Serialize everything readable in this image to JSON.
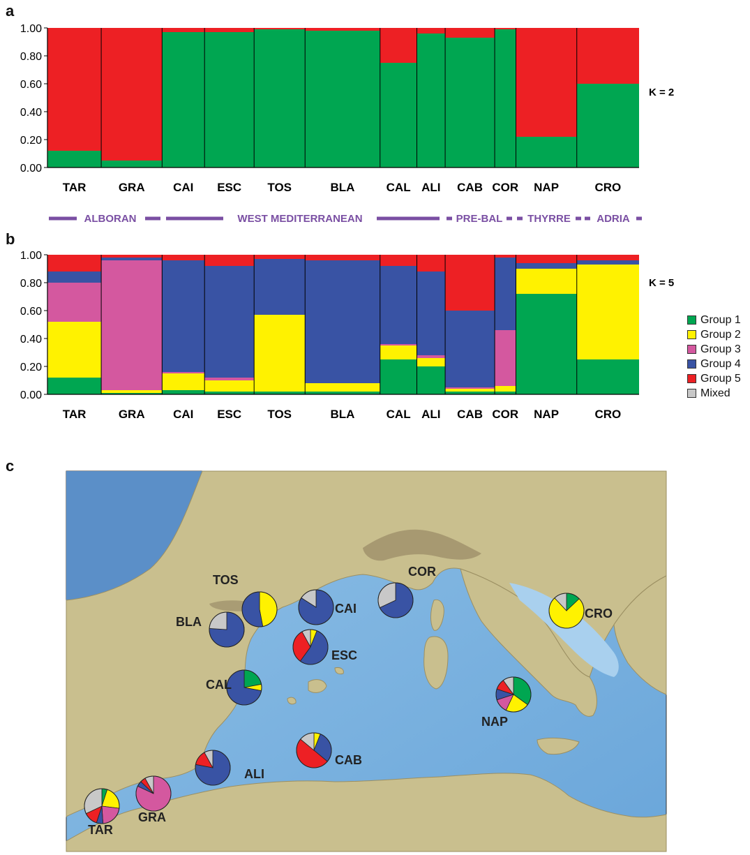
{
  "panels": {
    "a": "a",
    "b": "b",
    "c": "c"
  },
  "region_labels": [
    "ALBORAN",
    "WEST MEDITERRANEAN",
    "PRE-BAL",
    "THYRRE",
    "ADRIA"
  ],
  "colors": {
    "group1": "#00a651",
    "group2": "#fff200",
    "group3": "#d4589f",
    "group4": "#3953a4",
    "group5": "#ed2024",
    "mixed": "#c8c8c8",
    "region": "#7a4fa3"
  },
  "legend": [
    "Group 1",
    "Group 2",
    "Group 3",
    "Group 4",
    "Group 5",
    "Mixed"
  ],
  "chart_data": [
    {
      "type": "bar",
      "stacked": true,
      "k_label": "K = 2",
      "ylim": [
        0,
        1
      ],
      "y_ticks": [
        "0.00",
        "0.20",
        "0.40",
        "0.60",
        "0.80",
        "1.00"
      ],
      "categories": [
        "TAR",
        "GRA",
        "CAI",
        "ESC",
        "TOS",
        "BLA",
        "CAL",
        "ALI",
        "CAB",
        "COR",
        "NAP",
        "CRO"
      ],
      "series": [
        {
          "values": [
            0.12,
            0.05,
            0.97,
            0.97,
            0.99,
            0.98,
            0.75,
            0.96,
            0.93,
            0.99,
            0.22,
            0.6
          ]
        },
        {
          "values": [
            0.88,
            0.95,
            0.03,
            0.03,
            0.01,
            0.02,
            0.25,
            0.04,
            0.07,
            0.01,
            0.78,
            0.4
          ]
        }
      ]
    },
    {
      "type": "bar",
      "stacked": true,
      "k_label": "K = 5",
      "ylim": [
        0,
        1
      ],
      "y_ticks": [
        "0.00",
        "0.20",
        "0.40",
        "0.60",
        "0.80",
        "1.00"
      ],
      "categories": [
        "TAR",
        "GRA",
        "CAI",
        "ESC",
        "TOS",
        "BLA",
        "CAL",
        "ALI",
        "CAB",
        "COR",
        "NAP",
        "CRO"
      ],
      "series": [
        {
          "name": "Group 1",
          "values": [
            0.12,
            0.01,
            0.03,
            0.02,
            0.02,
            0.02,
            0.25,
            0.2,
            0.02,
            0.02,
            0.72,
            0.25
          ]
        },
        {
          "name": "Group 2",
          "values": [
            0.4,
            0.02,
            0.12,
            0.08,
            0.55,
            0.06,
            0.1,
            0.06,
            0.02,
            0.04,
            0.18,
            0.68
          ]
        },
        {
          "name": "Group 3",
          "values": [
            0.28,
            0.93,
            0.01,
            0.02,
            0.0,
            0.0,
            0.01,
            0.02,
            0.01,
            0.4,
            0.0,
            0.0
          ]
        },
        {
          "name": "Group 4",
          "values": [
            0.08,
            0.02,
            0.8,
            0.8,
            0.4,
            0.88,
            0.56,
            0.6,
            0.55,
            0.52,
            0.04,
            0.03
          ]
        },
        {
          "name": "Group 5",
          "values": [
            0.12,
            0.02,
            0.04,
            0.08,
            0.03,
            0.04,
            0.08,
            0.12,
            0.4,
            0.02,
            0.06,
            0.04
          ]
        }
      ]
    },
    {
      "type": "pie",
      "map": true,
      "categories": [
        "Group 1",
        "Group 2",
        "Group 3",
        "Group 4",
        "Group 5",
        "Mixed"
      ],
      "pies": [
        {
          "label": "TAR",
          "values": [
            0.05,
            0.22,
            0.22,
            0.06,
            0.13,
            0.32
          ]
        },
        {
          "label": "GRA",
          "values": [
            0.0,
            0.0,
            0.82,
            0.05,
            0.05,
            0.08
          ]
        },
        {
          "label": "ALI",
          "values": [
            0.0,
            0.0,
            0.0,
            0.78,
            0.14,
            0.08
          ]
        },
        {
          "label": "CAB",
          "values": [
            0.0,
            0.06,
            0.0,
            0.3,
            0.5,
            0.14
          ]
        },
        {
          "label": "CAL",
          "values": [
            0.22,
            0.06,
            0.0,
            0.72,
            0.0,
            0.0
          ]
        },
        {
          "label": "BLA",
          "values": [
            0.0,
            0.0,
            0.0,
            0.76,
            0.0,
            0.24
          ]
        },
        {
          "label": "TOS",
          "values": [
            0.0,
            0.47,
            0.0,
            0.53,
            0.0,
            0.0
          ]
        },
        {
          "label": "CAI",
          "values": [
            0.0,
            0.0,
            0.0,
            0.84,
            0.0,
            0.16
          ]
        },
        {
          "label": "ESC",
          "values": [
            0.0,
            0.06,
            0.0,
            0.54,
            0.32,
            0.08
          ]
        },
        {
          "label": "COR",
          "values": [
            0.0,
            0.0,
            0.0,
            0.68,
            0.0,
            0.32
          ]
        },
        {
          "label": "NAP",
          "values": [
            0.35,
            0.22,
            0.13,
            0.1,
            0.1,
            0.1
          ]
        },
        {
          "label": "CRO",
          "values": [
            0.13,
            0.75,
            0.0,
            0.0,
            0.0,
            0.12
          ]
        }
      ]
    }
  ]
}
